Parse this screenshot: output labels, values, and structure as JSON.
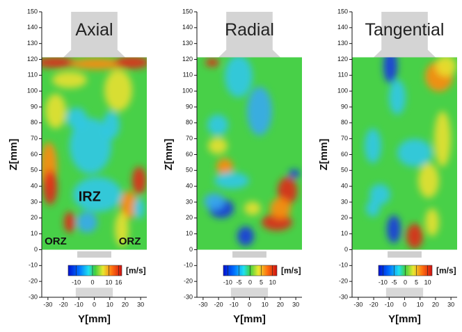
{
  "chart_data": [
    {
      "type": "contour",
      "title": "Axial",
      "xlabel": "Y[mm]",
      "ylabel": "Z[mm]",
      "xlim": [
        -34,
        34
      ],
      "xticks": [
        -30,
        -20,
        -10,
        0,
        10,
        20,
        30
      ],
      "ylim": [
        -30,
        150
      ],
      "yticks": [
        -30,
        -20,
        -10,
        0,
        10,
        20,
        30,
        40,
        50,
        60,
        70,
        80,
        90,
        100,
        110,
        120,
        130,
        140,
        150
      ],
      "colorbar": {
        "label": "[m/s]",
        "clim": [
          -15,
          18
        ],
        "ticks": [
          -10,
          0,
          10,
          16
        ]
      },
      "annotations": [
        "IRZ",
        "ORZ",
        "ORZ"
      ]
    },
    {
      "type": "contour",
      "title": "Radial",
      "xlabel": "Y[mm]",
      "ylabel": "Z[mm]",
      "xlim": [
        -34,
        34
      ],
      "xticks": [
        -30,
        -20,
        -10,
        0,
        10,
        20,
        30
      ],
      "ylim": [
        -30,
        150
      ],
      "yticks": [
        -30,
        -20,
        -10,
        0,
        10,
        20,
        30,
        40,
        50,
        60,
        70,
        80,
        90,
        100,
        110,
        120,
        130,
        140,
        150
      ],
      "colorbar": {
        "label": "[m/s]",
        "clim": [
          -12,
          12
        ],
        "ticks": [
          -10,
          -5,
          0,
          5,
          10
        ]
      }
    },
    {
      "type": "contour",
      "title": "Tangential",
      "xlabel": "Y[mm]",
      "ylabel": "Z[mm]",
      "xlim": [
        -34,
        34
      ],
      "xticks": [
        -30,
        -20,
        -10,
        0,
        10,
        20,
        30
      ],
      "ylim": [
        -30,
        150
      ],
      "yticks": [
        -30,
        -20,
        -10,
        0,
        10,
        20,
        30,
        40,
        50,
        60,
        70,
        80,
        90,
        100,
        110,
        120,
        130,
        140,
        150
      ],
      "colorbar": {
        "label": "[m/s]",
        "clim": [
          -12,
          12
        ],
        "ticks": [
          -10,
          -5,
          0,
          5,
          10
        ]
      }
    }
  ]
}
